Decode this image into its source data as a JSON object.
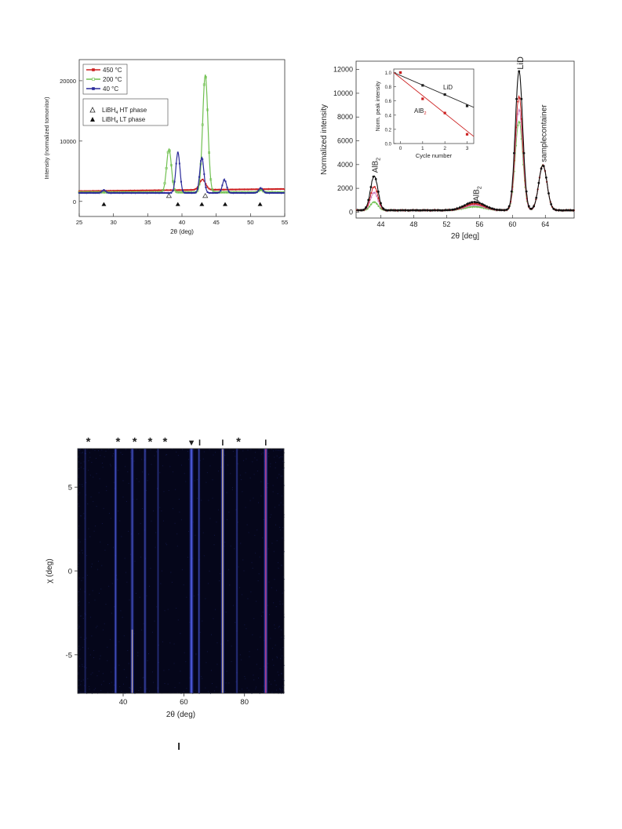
{
  "page": {
    "footer_mark": "I"
  },
  "chart_data": [
    {
      "type": "line",
      "xlabel": "2θ (deg)",
      "ylabel": "Intensity (normalized tomonitor)",
      "xlim": [
        25,
        55
      ],
      "ylim": [
        -2500,
        23500
      ],
      "xticks": [
        25,
        30,
        35,
        40,
        45,
        50,
        55
      ],
      "yticks": [
        0,
        10000,
        20000
      ],
      "baseline_offset": 1500,
      "colors": {
        "s450": "#cc2020",
        "s200": "#70c050",
        "s40": "#2a2a9a"
      },
      "series": [
        {
          "name": "450 °C",
          "baseline": 1700,
          "peaks": [
            {
              "x": 43.0,
              "h": 1700,
              "w": 0.45
            }
          ]
        },
        {
          "name": "200 °C",
          "baseline": 1500,
          "peaks": [
            {
              "x": 38.1,
              "h": 7200,
              "w": 0.35
            },
            {
              "x": 43.4,
              "h": 19500,
              "w": 0.38
            },
            {
              "x": 51.5,
              "h": 400,
              "w": 0.3
            }
          ]
        },
        {
          "name": "40 °C",
          "baseline": 1400,
          "peaks": [
            {
              "x": 28.6,
              "h": 500,
              "w": 0.25
            },
            {
              "x": 39.4,
              "h": 6700,
              "w": 0.3
            },
            {
              "x": 42.9,
              "h": 5900,
              "w": 0.3
            },
            {
              "x": 46.2,
              "h": 2200,
              "w": 0.3
            },
            {
              "x": 51.5,
              "h": 800,
              "w": 0.3
            }
          ]
        }
      ],
      "markers_ht": {
        "name": "LiBH4 HT phase",
        "x": [
          38.1,
          43.4
        ]
      },
      "markers_lt": {
        "name": "LiBH4 LT phase",
        "x": [
          28.6,
          39.4,
          42.9,
          46.3,
          51.4
        ]
      },
      "legend": {
        "s450": "450 °C",
        "s200": "200 °C",
        "s40": "40 °C",
        "ht": "LiBH",
        "ht2": " HT phase",
        "lt": "LiBH",
        "lt2": " LT phase",
        "sub": "4"
      }
    },
    {
      "type": "line",
      "xlabel": "2θ [deg]",
      "ylabel": "Normalized intensity",
      "xlim": [
        41,
        67.5
      ],
      "ylim": [
        -500,
        12700
      ],
      "xticks": [
        44,
        48,
        52,
        56,
        60,
        64
      ],
      "yticks": [
        0,
        2000,
        4000,
        6000,
        8000,
        10000,
        12000
      ],
      "colors": {
        "c0": "#111111",
        "c1": "#cc2020",
        "c2": "#d080c0",
        "c3": "#70c050",
        "c4": "#5050c0"
      },
      "series": [
        {
          "name": "c0",
          "peaks": [
            {
              "x": 43.2,
              "h": 2900
            },
            {
              "x": 55.4,
              "h": 700
            },
            {
              "x": 60.8,
              "h": 11700
            },
            {
              "x": 63.7,
              "h": 3800
            }
          ]
        },
        {
          "name": "c1",
          "peaks": [
            {
              "x": 43.2,
              "h": 2000
            },
            {
              "x": 55.4,
              "h": 550
            },
            {
              "x": 60.8,
              "h": 9600
            },
            {
              "x": 63.7,
              "h": 3800
            }
          ]
        },
        {
          "name": "c2",
          "peaks": [
            {
              "x": 43.2,
              "h": 1500
            },
            {
              "x": 55.4,
              "h": 450
            },
            {
              "x": 60.8,
              "h": 8500
            },
            {
              "x": 63.7,
              "h": 3800
            }
          ]
        },
        {
          "name": "c3",
          "peaks": [
            {
              "x": 43.2,
              "h": 700
            },
            {
              "x": 55.4,
              "h": 300
            },
            {
              "x": 60.8,
              "h": 7500
            },
            {
              "x": 63.7,
              "h": 3800
            }
          ]
        }
      ],
      "annotations": {
        "alb2_a": "AlB",
        "alb2_b": "AlB",
        "sub2": "2",
        "lid": "LiD",
        "sample": "samplecontainer"
      },
      "inset": {
        "xlabel": "Cycle number",
        "ylabel": "Norm. peak intensity",
        "xlim": [
          -0.3,
          3.3
        ],
        "ylim": [
          0.0,
          1.05
        ],
        "xticks": [
          0,
          1,
          2,
          3
        ],
        "yticks": [
          0.0,
          0.2,
          0.4,
          0.6,
          0.8,
          1.0
        ],
        "series": [
          {
            "name": "LiD",
            "x": [
              0,
              1,
              2,
              3
            ],
            "values": [
              1.0,
              0.82,
              0.69,
              0.53
            ],
            "fit": [
              [
                -0.3,
                1.0
              ],
              [
                3.3,
                0.51
              ]
            ]
          },
          {
            "name": "AlB",
            "x": [
              0,
              1,
              2,
              3
            ],
            "values": [
              1.0,
              0.63,
              0.43,
              0.13
            ],
            "fit": [
              [
                -0.3,
                1.0
              ],
              [
                3.3,
                0.1
              ]
            ]
          }
        ]
      }
    },
    {
      "type": "heatmap",
      "xlabel": "2θ (deg)",
      "ylabel": "χ (deg)",
      "xlim": [
        25,
        93
      ],
      "ylim": [
        -7.3,
        7.3
      ],
      "xticks": [
        40,
        60,
        80
      ],
      "yticks": [
        5,
        0,
        -5
      ],
      "lines": [
        {
          "x": 27.5,
          "intensity": 0.15,
          "width": 0.8
        },
        {
          "x": 37.5,
          "intensity": 0.55,
          "width": 1.0
        },
        {
          "x": 43.0,
          "intensity": 0.5,
          "width": 1.2
        },
        {
          "x": 47.2,
          "intensity": 0.4,
          "width": 1.0
        },
        {
          "x": 51.5,
          "intensity": 0.25,
          "width": 0.8
        },
        {
          "x": 62.5,
          "intensity": 0.7,
          "width": 1.4
        },
        {
          "x": 65.0,
          "intensity": 0.45,
          "width": 0.8
        },
        {
          "x": 72.8,
          "intensity": 1.0,
          "width": 1.1
        },
        {
          "x": 77.5,
          "intensity": 0.3,
          "width": 0.8
        },
        {
          "x": 87.0,
          "intensity": 0.85,
          "width": 1.3
        }
      ],
      "top_markers": [
        {
          "x": 28.5,
          "symbol": "*"
        },
        {
          "x": 38.3,
          "symbol": "*"
        },
        {
          "x": 43.8,
          "symbol": "*"
        },
        {
          "x": 48.9,
          "symbol": "*"
        },
        {
          "x": 53.8,
          "symbol": "*"
        },
        {
          "x": 62.5,
          "symbol": "▼"
        },
        {
          "x": 65.2,
          "symbol": "I"
        },
        {
          "x": 72.8,
          "symbol": "I"
        },
        {
          "x": 78.0,
          "symbol": "*"
        },
        {
          "x": 87.0,
          "symbol": "I"
        }
      ]
    }
  ]
}
